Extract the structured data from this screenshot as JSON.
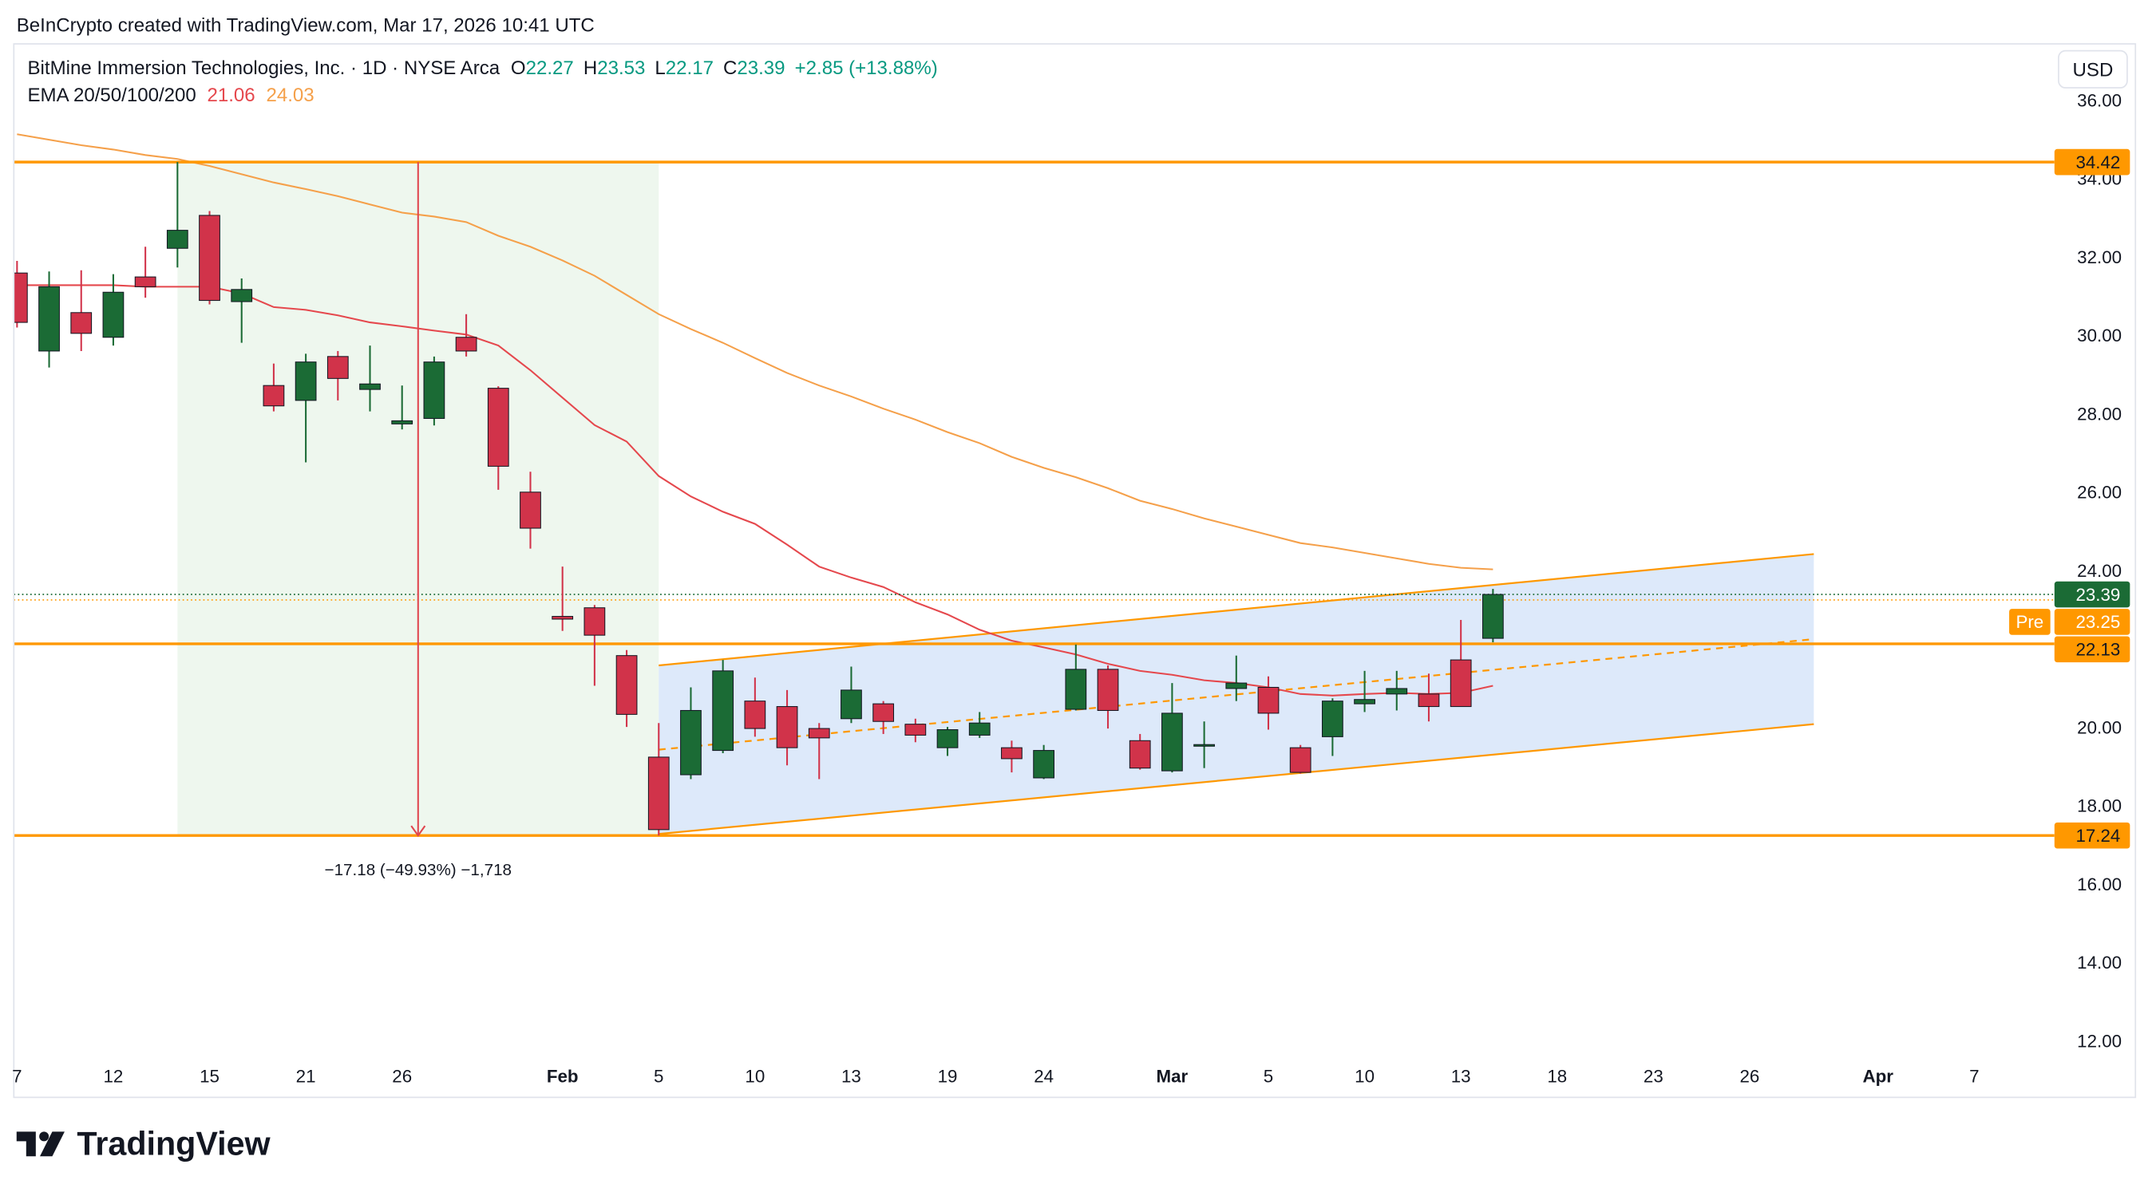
{
  "credit": "BeInCrypto created with TradingView.com, Mar 17, 2026 10:41 UTC",
  "logo": "TradingView",
  "chart_data": {
    "type": "candlestick",
    "legend": {
      "symbol": "BitMine Immersion Technologies, Inc. · 1D · NYSE Arca",
      "ohlc_prefixes": [
        "O",
        "H",
        "L",
        "C"
      ],
      "change": "+2.85 (+13.88%)",
      "ema_label": "EMA 20/50/100/200"
    },
    "currency": "USD",
    "open": [
      31.59,
      29.6,
      30.58,
      29.95,
      31.49,
      32.22,
      33.06,
      30.86,
      28.72,
      28.34,
      29.46,
      28.62,
      27.74,
      27.88,
      29.95,
      28.65,
      26.0,
      22.83,
      23.05,
      21.83,
      19.24,
      18.79,
      19.41,
      20.67,
      20.53,
      19.97,
      20.22,
      20.6,
      20.08,
      19.48,
      19.8,
      19.48,
      18.71,
      20.46,
      21.48,
      19.66,
      18.89,
      19.52,
      20.99,
      21.02,
      19.48,
      19.76,
      20.6,
      20.85,
      20.85,
      21.72,
      22.27
    ],
    "high": [
      31.9,
      31.63,
      31.66,
      31.56,
      32.26,
      34.42,
      33.17,
      31.45,
      29.28,
      29.53,
      29.6,
      29.74,
      28.72,
      29.46,
      30.54,
      28.7,
      26.52,
      24.1,
      23.12,
      21.97,
      20.11,
      21.02,
      21.72,
      21.27,
      20.95,
      20.11,
      21.55,
      20.67,
      20.22,
      20.01,
      20.39,
      19.66,
      19.55,
      22.11,
      21.58,
      19.83,
      21.13,
      20.15,
      21.83,
      21.3,
      19.55,
      20.74,
      21.44,
      21.44,
      21.37,
      22.74,
      23.53
    ],
    "low": [
      30.2,
      29.18,
      29.6,
      29.74,
      30.96,
      31.73,
      30.79,
      29.81,
      28.06,
      26.76,
      28.34,
      28.06,
      27.6,
      27.7,
      29.46,
      26.06,
      24.56,
      22.46,
      21.06,
      20.01,
      17.24,
      18.68,
      19.34,
      19.76,
      19.03,
      18.68,
      20.11,
      19.83,
      19.62,
      19.27,
      19.73,
      18.85,
      18.68,
      20.43,
      19.97,
      18.92,
      18.85,
      18.96,
      20.67,
      19.94,
      18.82,
      19.27,
      20.39,
      20.43,
      20.15,
      20.53,
      22.17
    ],
    "close": [
      30.33,
      31.24,
      30.05,
      31.1,
      31.24,
      32.68,
      30.89,
      31.17,
      28.2,
      29.32,
      28.9,
      28.76,
      27.82,
      29.32,
      29.6,
      26.66,
      25.08,
      22.76,
      22.35,
      20.33,
      17.39,
      20.43,
      21.44,
      19.97,
      19.48,
      19.73,
      20.95,
      20.15,
      19.8,
      19.94,
      20.11,
      19.2,
      19.41,
      21.48,
      20.43,
      18.96,
      20.36,
      19.56,
      21.13,
      20.36,
      18.85,
      20.67,
      20.71,
      20.99,
      20.53,
      20.53,
      23.39
    ],
    "up_color": "#1b6b35",
    "down_color": "#d1334a",
    "value_color": "#089981",
    "ema": [
      {
        "color": "#e5484d",
        "values": [
          31.28,
          31.28,
          31.28,
          31.28,
          31.24,
          31.24,
          31.24,
          31.07,
          30.72,
          30.65,
          30.51,
          30.33,
          30.23,
          30.12,
          30.02,
          29.74,
          29.11,
          28.41,
          27.71,
          27.29,
          26.41,
          25.89,
          25.5,
          25.19,
          24.66,
          24.1,
          23.82,
          23.58,
          23.19,
          22.88,
          22.49,
          22.21,
          22.04,
          21.86,
          21.62,
          21.44,
          21.34,
          21.2,
          21.13,
          21.02,
          20.85,
          20.81,
          20.85,
          20.88,
          20.85,
          20.88,
          21.06
        ]
      },
      {
        "color": "#f5a04a",
        "values": [
          35.13,
          34.99,
          34.85,
          34.74,
          34.6,
          34.5,
          34.32,
          34.11,
          33.9,
          33.73,
          33.55,
          33.34,
          33.13,
          33.03,
          32.89,
          32.54,
          32.26,
          31.91,
          31.52,
          31.03,
          30.54,
          30.16,
          29.81,
          29.42,
          29.04,
          28.72,
          28.44,
          28.13,
          27.85,
          27.53,
          27.25,
          26.9,
          26.62,
          26.38,
          26.1,
          25.78,
          25.57,
          25.33,
          25.12,
          24.91,
          24.7,
          24.59,
          24.45,
          24.31,
          24.17,
          24.07,
          24.03
        ]
      }
    ],
    "levels": [
      34.42,
      22.13,
      17.24
    ],
    "level_color": "#ff9800",
    "premarket": {
      "label": "Pre",
      "value": 23.25
    },
    "channel": {
      "x": [
        20,
        56
      ],
      "upper": [
        21.58,
        24.42
      ],
      "middle": [
        19.43,
        22.25
      ],
      "lower": [
        17.28,
        20.08
      ],
      "fill": "#dbe8fa"
    },
    "measure": {
      "from": 5,
      "to": 20,
      "label": "−17.18 (−49.93%) −1,718",
      "fill": "#eef7ee",
      "color": "#e0464f"
    },
    "xlim": [
      -0.1,
      63.5
    ],
    "xticks": [
      {
        "value": 0,
        "label": "7"
      },
      {
        "value": 3,
        "label": "12"
      },
      {
        "value": 6,
        "label": "15"
      },
      {
        "value": 9,
        "label": "21"
      },
      {
        "value": 12,
        "label": "26"
      },
      {
        "value": 17,
        "label": "Feb"
      },
      {
        "value": 20,
        "label": "5"
      },
      {
        "value": 23,
        "label": "10"
      },
      {
        "value": 26,
        "label": "13"
      },
      {
        "value": 29,
        "label": "19"
      },
      {
        "value": 32,
        "label": "24"
      },
      {
        "value": 36,
        "label": "Mar"
      },
      {
        "value": 39,
        "label": "5"
      },
      {
        "value": 42,
        "label": "10"
      },
      {
        "value": 45,
        "label": "13"
      },
      {
        "value": 48,
        "label": "18"
      },
      {
        "value": 51,
        "label": "23"
      },
      {
        "value": 54,
        "label": "26"
      },
      {
        "value": 58,
        "label": "Apr"
      },
      {
        "value": 61,
        "label": "7"
      }
    ],
    "ylim": [
      11.61,
      37.4
    ],
    "yticks": [
      {
        "value": 12,
        "label": "12.00"
      },
      {
        "value": 14,
        "label": "14.00"
      },
      {
        "value": 16,
        "label": "16.00"
      },
      {
        "value": 18,
        "label": "18.00"
      },
      {
        "value": 20,
        "label": "20.00"
      },
      {
        "value": 22,
        "label": "22.00"
      },
      {
        "value": 24,
        "label": "24.00"
      },
      {
        "value": 26,
        "label": "26.00"
      },
      {
        "value": 28,
        "label": "28.00"
      },
      {
        "value": 30,
        "label": "30.00"
      },
      {
        "value": 32,
        "label": "32.00"
      },
      {
        "value": 34,
        "label": "34.00"
      },
      {
        "value": 36,
        "label": "36.00"
      }
    ],
    "grid": false
  }
}
